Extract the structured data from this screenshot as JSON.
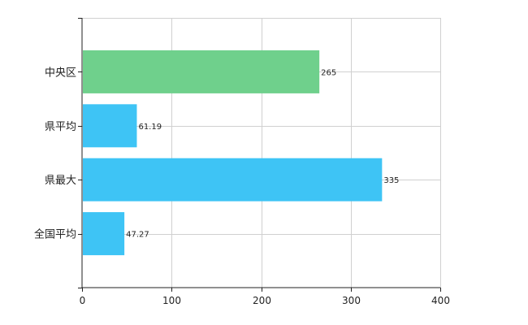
{
  "chart_data": {
    "type": "bar",
    "orientation": "horizontal",
    "categories": [
      "中央区",
      "県平均",
      "県最大",
      "全国平均"
    ],
    "values": [
      265,
      61.19,
      335,
      47.27
    ],
    "data_labels": [
      "265",
      "61.19",
      "335",
      "47.27"
    ],
    "bar_colors": [
      "#6fd08c",
      "#3ec4f5",
      "#3ec4f5",
      "#3ec4f5"
    ],
    "xlim": [
      0,
      400
    ],
    "xticks": [
      0,
      100,
      200,
      300,
      400
    ],
    "title": "",
    "xlabel": "",
    "ylabel": "",
    "grid": true,
    "legend": "none"
  }
}
